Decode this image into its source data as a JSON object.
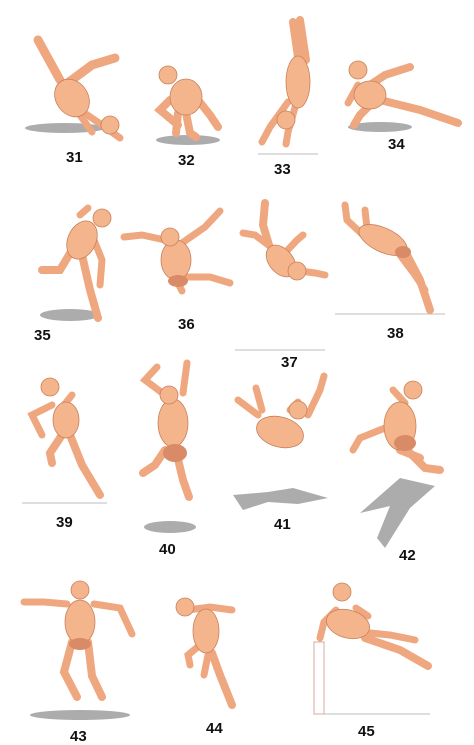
{
  "figures": [
    {
      "id": "31",
      "label": "31"
    },
    {
      "id": "32",
      "label": "32"
    },
    {
      "id": "33",
      "label": "33"
    },
    {
      "id": "34",
      "label": "34"
    },
    {
      "id": "35",
      "label": "35"
    },
    {
      "id": "36",
      "label": "36"
    },
    {
      "id": "37",
      "label": "37"
    },
    {
      "id": "38",
      "label": "38"
    },
    {
      "id": "39",
      "label": "39"
    },
    {
      "id": "40",
      "label": "40"
    },
    {
      "id": "41",
      "label": "41"
    },
    {
      "id": "42",
      "label": "42"
    },
    {
      "id": "43",
      "label": "43"
    },
    {
      "id": "44",
      "label": "44"
    },
    {
      "id": "45",
      "label": "45"
    }
  ],
  "colors": {
    "skin": "#f4b48c",
    "skin_shade": "#d98a66",
    "outline": "#c9805a",
    "shadow": "#9e9e9e",
    "label": "#111111",
    "background": "#ffffff"
  }
}
